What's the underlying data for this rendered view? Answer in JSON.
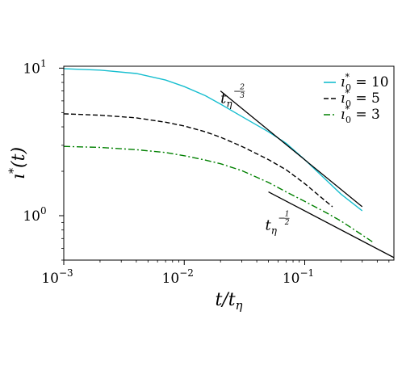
{
  "chart_data": {
    "type": "line",
    "title": "",
    "xlabel": "t/t_η",
    "ylabel": "ı*(t)",
    "xscale": "log",
    "yscale": "log",
    "xlim": [
      0.001,
      0.55
    ],
    "ylim": [
      0.5,
      10.3
    ],
    "grid": false,
    "legend_position": "top-right",
    "x_ticks": [
      {
        "value": 0.001,
        "base": "10",
        "exp": "−3"
      },
      {
        "value": 0.01,
        "base": "10",
        "exp": "−2"
      },
      {
        "value": 0.1,
        "base": "10",
        "exp": "−1"
      }
    ],
    "y_ticks": [
      {
        "value": 1,
        "base": "10",
        "exp": "0"
      },
      {
        "value": 10,
        "base": "10",
        "exp": "1"
      }
    ],
    "series": [
      {
        "name": "ı*₀ = 10",
        "legend": {
          "sym": "ı",
          "sup": "*",
          "sub": "0",
          "rhs": " = 10"
        },
        "color": "#17becf",
        "style": "solid",
        "x": [
          0.001,
          0.002,
          0.004,
          0.007,
          0.01,
          0.015,
          0.02,
          0.03,
          0.05,
          0.07,
          0.1,
          0.15,
          0.2,
          0.3
        ],
        "y": [
          9.9,
          9.7,
          9.2,
          8.3,
          7.5,
          6.5,
          5.7,
          4.7,
          3.7,
          3.1,
          2.4,
          1.75,
          1.4,
          1.08
        ]
      },
      {
        "name": "ı*₀ = 5",
        "legend": {
          "sym": "ı",
          "sup": "*",
          "sub": "0",
          "rhs": " = 5"
        },
        "color": "#000000",
        "style": "dashed",
        "x": [
          0.001,
          0.002,
          0.004,
          0.007,
          0.01,
          0.015,
          0.02,
          0.03,
          0.05,
          0.07,
          0.1,
          0.15,
          0.17
        ],
        "y": [
          4.9,
          4.8,
          4.6,
          4.3,
          4.05,
          3.7,
          3.4,
          2.95,
          2.4,
          2.05,
          1.65,
          1.25,
          1.15
        ]
      },
      {
        "name": "ı*₀ = 3",
        "legend": {
          "sym": "ı",
          "sup": "*",
          "sub": "0",
          "rhs": " = 3"
        },
        "color": "#008000",
        "style": "dashdot",
        "x": [
          0.001,
          0.002,
          0.004,
          0.007,
          0.01,
          0.015,
          0.02,
          0.03,
          0.05,
          0.07,
          0.1,
          0.15,
          0.2,
          0.3,
          0.37
        ],
        "y": [
          2.95,
          2.9,
          2.8,
          2.68,
          2.55,
          2.38,
          2.25,
          2.02,
          1.68,
          1.45,
          1.25,
          1.05,
          0.92,
          0.74,
          0.66
        ]
      }
    ],
    "reference_lines": [
      {
        "x": [
          0.02,
          0.3
        ],
        "y": [
          7.0,
          1.15
        ],
        "color": "#000000",
        "label": {
          "base": "t",
          "sub": "η",
          "exp": "−2/3",
          "num": "2",
          "den": "3",
          "x": 0.02,
          "y": 5.8
        }
      },
      {
        "x": [
          0.05,
          0.55
        ],
        "y": [
          1.45,
          0.52
        ],
        "color": "#000000",
        "label": {
          "base": "t",
          "sub": "η",
          "exp": "−1/2",
          "num": "1",
          "den": "2",
          "x": 0.047,
          "y": 0.8
        }
      }
    ]
  }
}
